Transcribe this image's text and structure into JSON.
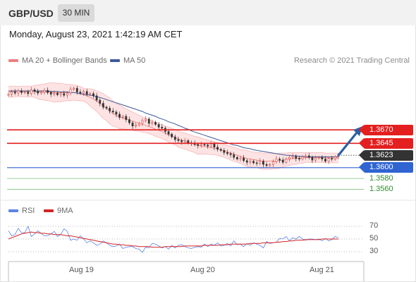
{
  "header": {
    "symbol": "GBP/USD",
    "interval": "30 MIN"
  },
  "timestamp": "Monday, August 23, 2021 1:42:19 AM CET",
  "legend": {
    "bb_label": "MA 20 + Bollinger Bands",
    "ma50_label": "MA 50",
    "credit": "Research © 2021 Trading Central",
    "rsi_label": "RSI",
    "rsi_ma_label": "9MA"
  },
  "colors": {
    "bollinger": "#f08080",
    "bollinger_fill": "#fde3e3",
    "ma50": "#3d5a99",
    "resistance": "#e41f1f",
    "pivot": "#2f64d2",
    "support": "#3a9a3a",
    "candle_up": "#c7413b",
    "candle_down": "#333333",
    "arrow": "#2d5ea3",
    "rsi": "#5b84e6",
    "rsi_ma": "#d62222"
  },
  "chart_data": [
    {
      "type": "candlestick",
      "title": "",
      "xlabel": "",
      "ylabel": "",
      "x_ticks": [
        "Aug 19",
        "Aug 20",
        "Aug 21"
      ],
      "ylim": [
        1.3545,
        1.3785
      ],
      "price_current": 1.3623,
      "levels": [
        {
          "value": 1.367,
          "label": "1.3670",
          "kind": "resistance"
        },
        {
          "value": 1.3645,
          "label": "1.3645",
          "kind": "resistance"
        },
        {
          "value": 1.3623,
          "label": "1.3623",
          "kind": "last"
        },
        {
          "value": 1.36,
          "label": "1.3600",
          "kind": "pivot"
        },
        {
          "value": 1.358,
          "label": "1.3580",
          "kind": "support"
        },
        {
          "value": 1.356,
          "label": "1.3560",
          "kind": "support"
        }
      ],
      "close_path": [
        1.3736,
        1.374,
        1.3738,
        1.3742,
        1.3739,
        1.374,
        1.3737,
        1.3744,
        1.3741,
        1.3738,
        1.374,
        1.3743,
        1.3739,
        1.3736,
        1.3738,
        1.3735,
        1.3737,
        1.3734,
        1.3738,
        1.3745,
        1.3747,
        1.374,
        1.3738,
        1.3741,
        1.3736,
        1.3737,
        1.3733,
        1.3725,
        1.3719,
        1.3712,
        1.371,
        1.3705,
        1.3703,
        1.3699,
        1.3693,
        1.3695,
        1.3689,
        1.3683,
        1.3677,
        1.3679,
        1.3682,
        1.3687,
        1.369,
        1.3682,
        1.3684,
        1.368,
        1.3675,
        1.3673,
        1.3667,
        1.3662,
        1.3657,
        1.3652,
        1.365,
        1.3648,
        1.365,
        1.3646,
        1.3645,
        1.3643,
        1.3641,
        1.3643,
        1.3642,
        1.364,
        1.3644,
        1.3638,
        1.3634,
        1.3632,
        1.3628,
        1.3626,
        1.3624,
        1.3619,
        1.3616,
        1.3618,
        1.3613,
        1.361,
        1.3612,
        1.3609,
        1.3608,
        1.3612,
        1.3606,
        1.3604,
        1.3606,
        1.3611,
        1.3616,
        1.3614,
        1.361,
        1.3616,
        1.3619,
        1.3621,
        1.3617,
        1.3616,
        1.362,
        1.3622,
        1.3619,
        1.3614,
        1.3618,
        1.3619,
        1.3616,
        1.3612,
        1.3617,
        1.3616,
        1.362,
        1.3623
      ],
      "ma20": [
        1.374,
        1.3741,
        1.3741,
        1.3741,
        1.3741,
        1.3741,
        1.3741,
        1.3741,
        1.3741,
        1.374,
        1.374,
        1.374,
        1.374,
        1.374,
        1.3739,
        1.3739,
        1.3739,
        1.3739,
        1.3739,
        1.3739,
        1.3739,
        1.3738,
        1.3737,
        1.3735,
        1.3733,
        1.373,
        1.3727,
        1.3723,
        1.3719,
        1.3714,
        1.371,
        1.3705,
        1.37,
        1.3697,
        1.3694,
        1.3692,
        1.369,
        1.3688,
        1.3686,
        1.3684,
        1.3682,
        1.368,
        1.3678,
        1.3676,
        1.3674,
        1.3671,
        1.3669,
        1.3667,
        1.3664,
        1.3661,
        1.3659,
        1.3656,
        1.3653,
        1.3651,
        1.3649,
        1.3647,
        1.3645,
        1.3643,
        1.3641,
        1.364,
        1.3639,
        1.3638,
        1.3637,
        1.3636,
        1.3635,
        1.3633,
        1.3631,
        1.3629,
        1.3627,
        1.3625,
        1.3623,
        1.3621,
        1.3619,
        1.3617,
        1.3616,
        1.3615,
        1.3614,
        1.3613,
        1.3612,
        1.3612,
        1.3612,
        1.3612,
        1.3612,
        1.3613,
        1.3614,
        1.3615,
        1.3616,
        1.3617,
        1.3617,
        1.3618,
        1.3618,
        1.3619,
        1.3619,
        1.3619,
        1.3619,
        1.3619,
        1.3619,
        1.3618,
        1.3618,
        1.3618,
        1.3618,
        1.3618
      ],
      "bb_upper": [
        1.375,
        1.3751,
        1.3751,
        1.375,
        1.3751,
        1.3751,
        1.3751,
        1.3751,
        1.3752,
        1.3753,
        1.3754,
        1.3755,
        1.3756,
        1.3757,
        1.3757,
        1.3756,
        1.3756,
        1.3755,
        1.3754,
        1.3754,
        1.3753,
        1.3752,
        1.375,
        1.3747,
        1.3746,
        1.3746,
        1.3745,
        1.3742,
        1.374,
        1.3737,
        1.3733,
        1.3729,
        1.3723,
        1.3719,
        1.3716,
        1.3712,
        1.3709,
        1.3706,
        1.3703,
        1.37,
        1.3697,
        1.3694,
        1.3691,
        1.3689,
        1.3687,
        1.3684,
        1.3682,
        1.368,
        1.3677,
        1.3675,
        1.3673,
        1.367,
        1.3668,
        1.3666,
        1.3664,
        1.3662,
        1.366,
        1.3658,
        1.3657,
        1.3655,
        1.3653,
        1.3651,
        1.365,
        1.3648,
        1.3647,
        1.3645,
        1.3643,
        1.3641,
        1.364,
        1.3638,
        1.3636,
        1.3634,
        1.3633,
        1.3632,
        1.363,
        1.3629,
        1.3628,
        1.3628,
        1.3627,
        1.3627,
        1.3627,
        1.3626,
        1.3626,
        1.3627,
        1.3627,
        1.3627,
        1.3628,
        1.3628,
        1.3628,
        1.3628,
        1.3628,
        1.3628,
        1.3628,
        1.3628,
        1.3628,
        1.3628,
        1.3628,
        1.3627,
        1.3627,
        1.3627,
        1.3627,
        1.3627
      ],
      "bb_lower": [
        1.373,
        1.3731,
        1.3731,
        1.3732,
        1.3731,
        1.3731,
        1.3731,
        1.3731,
        1.373,
        1.3727,
        1.3726,
        1.3725,
        1.3724,
        1.3723,
        1.3721,
        1.3722,
        1.3722,
        1.3723,
        1.3724,
        1.3724,
        1.3725,
        1.3724,
        1.3724,
        1.3723,
        1.372,
        1.3714,
        1.3709,
        1.3704,
        1.3698,
        1.3691,
        1.3687,
        1.3681,
        1.3677,
        1.3675,
        1.3672,
        1.3672,
        1.3671,
        1.367,
        1.3669,
        1.3668,
        1.3667,
        1.3666,
        1.3665,
        1.3663,
        1.3661,
        1.3658,
        1.3656,
        1.3654,
        1.3651,
        1.3647,
        1.3645,
        1.3642,
        1.3638,
        1.3636,
        1.3634,
        1.3632,
        1.363,
        1.3628,
        1.3625,
        1.3625,
        1.3625,
        1.3625,
        1.3624,
        1.3624,
        1.3623,
        1.3621,
        1.3619,
        1.3617,
        1.3614,
        1.3612,
        1.361,
        1.3608,
        1.3605,
        1.3602,
        1.3602,
        1.3601,
        1.36,
        1.3598,
        1.3597,
        1.3597,
        1.3597,
        1.3598,
        1.3598,
        1.3599,
        1.3601,
        1.3603,
        1.3604,
        1.3606,
        1.3606,
        1.3608,
        1.3608,
        1.361,
        1.361,
        1.361,
        1.361,
        1.361,
        1.361,
        1.3609,
        1.3609,
        1.3609,
        1.3609,
        1.3609
      ],
      "ma50": [
        1.3742,
        1.3742,
        1.3742,
        1.3742,
        1.3742,
        1.3742,
        1.3742,
        1.3742,
        1.3742,
        1.3742,
        1.3742,
        1.3742,
        1.3742,
        1.3741,
        1.3741,
        1.3741,
        1.374,
        1.374,
        1.374,
        1.3739,
        1.3739,
        1.3738,
        1.3737,
        1.3736,
        1.3735,
        1.3734,
        1.3733,
        1.3731,
        1.373,
        1.3728,
        1.3726,
        1.3724,
        1.3722,
        1.372,
        1.3718,
        1.3716,
        1.3714,
        1.3712,
        1.371,
        1.3708,
        1.3706,
        1.3704,
        1.3701,
        1.3699,
        1.3697,
        1.3695,
        1.3692,
        1.369,
        1.3688,
        1.3685,
        1.3683,
        1.3681,
        1.3678,
        1.3676,
        1.3673,
        1.3671,
        1.3668,
        1.3666,
        1.3664,
        1.3662,
        1.366,
        1.3658,
        1.3656,
        1.3654,
        1.3652,
        1.365,
        1.3648,
        1.3646,
        1.3644,
        1.3642,
        1.3641,
        1.3639,
        1.3637,
        1.3636,
        1.3635,
        1.3633,
        1.3632,
        1.3631,
        1.363,
        1.3629,
        1.3628,
        1.3627,
        1.3626,
        1.3625,
        1.3624,
        1.3623,
        1.3623,
        1.3622,
        1.3622,
        1.3621,
        1.3621,
        1.362,
        1.362,
        1.362,
        1.362,
        1.362,
        1.362,
        1.362,
        1.362,
        1.362,
        1.362,
        1.362
      ],
      "arrow": {
        "from": 1.3623,
        "to": 1.367
      }
    },
    {
      "type": "line",
      "title": "",
      "xlabel": "",
      "ylabel": "",
      "ylim": [
        20,
        80
      ],
      "y_ticks": [
        70,
        50,
        30
      ],
      "series": [
        {
          "name": "RSI",
          "values": [
            63,
            55,
            57,
            67,
            60,
            60,
            70,
            54,
            58,
            63,
            59,
            55,
            55,
            58,
            62,
            54,
            57,
            66,
            62,
            48,
            50,
            48,
            55,
            50,
            44,
            47,
            44,
            40,
            42,
            47,
            44,
            40,
            38,
            39,
            42,
            35,
            37,
            38,
            38,
            35,
            34,
            29,
            37,
            36,
            43,
            42,
            39,
            36,
            38,
            34,
            40,
            36,
            40,
            41,
            38,
            36,
            35,
            37,
            38,
            37,
            42,
            38,
            42,
            40,
            44,
            39,
            40,
            43,
            39,
            47,
            41,
            42,
            38,
            43,
            40,
            44,
            42,
            40,
            36,
            46,
            43,
            44,
            45,
            51,
            50,
            54,
            47,
            52,
            50,
            54,
            50,
            48,
            50,
            50,
            49,
            50,
            47,
            51,
            47,
            49,
            54,
            52
          ]
        },
        {
          "name": "9MA",
          "values": [
            50,
            52,
            54,
            56,
            58,
            59,
            60,
            61,
            60,
            60,
            59,
            59,
            58,
            58,
            57,
            57,
            57,
            56,
            55,
            55,
            54,
            53,
            52,
            51,
            50,
            49,
            48,
            47,
            46,
            45,
            44,
            43,
            42,
            42,
            41,
            41,
            40,
            40,
            39,
            39,
            38,
            38,
            38,
            38,
            37,
            37,
            37,
            37,
            38,
            38,
            38,
            38,
            38,
            38,
            39,
            39,
            39,
            39,
            39,
            39,
            40,
            40,
            40,
            40,
            40,
            41,
            41,
            41,
            42,
            42,
            42,
            42,
            42,
            42,
            43,
            43,
            43,
            43,
            44,
            44,
            44,
            44,
            45,
            45,
            46,
            46,
            47,
            47,
            48,
            48,
            48,
            49,
            49,
            49,
            49,
            49,
            50,
            50,
            50,
            50,
            50,
            50
          ]
        }
      ]
    }
  ]
}
